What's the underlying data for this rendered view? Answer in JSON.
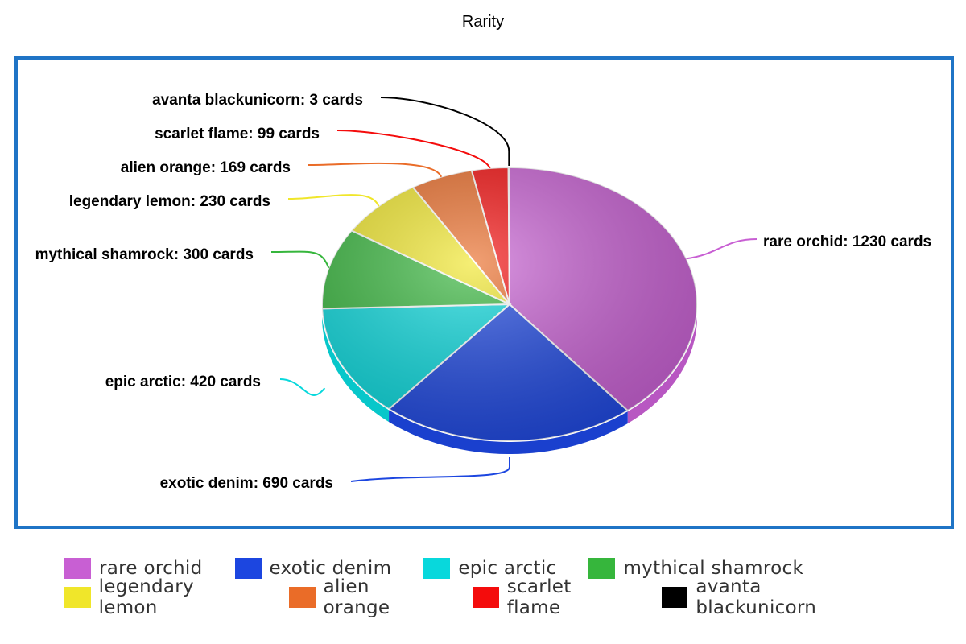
{
  "chart_data": {
    "type": "pie",
    "title": "Rarity",
    "unit": "cards",
    "slices": [
      {
        "name": "rare orchid",
        "value": 1230,
        "color": "#c85fd3"
      },
      {
        "name": "exotic denim",
        "value": 690,
        "color": "#1c46e0"
      },
      {
        "name": "epic arctic",
        "value": 420,
        "color": "#08d8dc"
      },
      {
        "name": "mythical shamrock",
        "value": 300,
        "color": "#36b63c"
      },
      {
        "name": "legendary lemon",
        "value": 230,
        "color": "#f0e62a"
      },
      {
        "name": "alien orange",
        "value": 169,
        "color": "#ea6c28"
      },
      {
        "name": "scarlet flame",
        "value": 99,
        "color": "#f40c0c"
      },
      {
        "name": "avanta blackunicorn",
        "value": 3,
        "color": "#000000"
      }
    ],
    "data_labels": [
      "rare orchid: 1230 cards",
      "exotic denim: 690 cards",
      "epic arctic: 420 cards",
      "mythical shamrock: 300 cards",
      "legendary lemon: 230 cards",
      "alien orange: 169 cards",
      "scarlet flame: 99 cards",
      "avanta blackunicorn: 3 cards"
    ],
    "legend_position": "bottom",
    "style": "3d-tilted"
  }
}
